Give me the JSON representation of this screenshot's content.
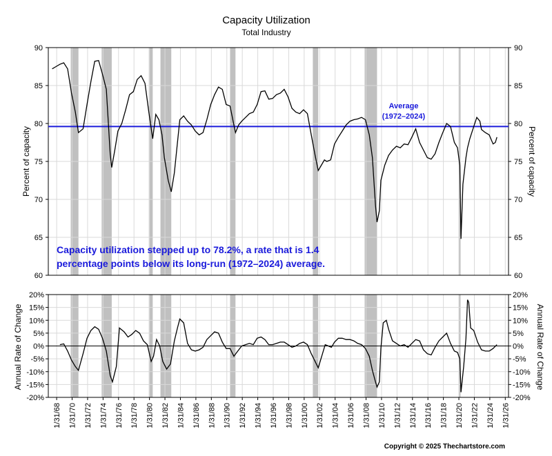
{
  "chart_data": [
    {
      "type": "line",
      "title": "Capacity Utilization",
      "subtitle": "Total Industry",
      "ylabel": "Percent of capacity",
      "ylim": [
        60,
        90
      ],
      "yticks": [
        60,
        65,
        70,
        75,
        80,
        85,
        90
      ],
      "average": {
        "value": 79.6,
        "label_line1": "Average",
        "label_line2": "(1972–2024)",
        "color": "#1a1adb"
      },
      "recessions": [
        [
          1969.9,
          1970.9
        ],
        [
          1973.9,
          1975.2
        ],
        [
          1980.0,
          1980.5
        ],
        [
          1981.5,
          1982.9
        ],
        [
          1990.5,
          1991.2
        ],
        [
          2001.2,
          2001.9
        ],
        [
          2007.9,
          2009.5
        ],
        [
          2020.1,
          2020.3
        ]
      ],
      "annotation_line1": "Capacity utilization stepped up to 78.2%, a rate that is 1.4",
      "annotation_line2": "percentage points below its long-run (1972–2024) average.",
      "series": [
        {
          "x": [
            1967.5,
            1968.0,
            1968.5,
            1969.0,
            1969.5,
            1970.0,
            1970.5,
            1970.9,
            1971.5,
            1972.0,
            1972.5,
            1973.0,
            1973.5,
            1974.0,
            1974.5,
            1975.0,
            1975.2,
            1975.6,
            1976.0,
            1976.5,
            1977.0,
            1977.5,
            1978.0,
            1978.5,
            1979.0,
            1979.5,
            1980.0,
            1980.5,
            1980.9,
            1981.3,
            1981.7,
            1982.0,
            1982.5,
            1982.9,
            1983.3,
            1983.7,
            1984.0,
            1984.5,
            1985.0,
            1985.5,
            1986.0,
            1986.5,
            1987.0,
            1987.5,
            1988.0,
            1988.5,
            1989.0,
            1989.5,
            1990.0,
            1990.5,
            1991.0,
            1991.2,
            1991.6,
            1992.0,
            1992.5,
            1993.0,
            1993.5,
            1994.0,
            1994.5,
            1995.0,
            1995.5,
            1996.0,
            1996.5,
            1997.0,
            1997.5,
            1998.0,
            1998.5,
            1999.0,
            1999.5,
            2000.0,
            2000.5,
            2001.0,
            2001.5,
            2001.9,
            2002.3,
            2002.7,
            2003.0,
            2003.5,
            2004.0,
            2004.5,
            2005.0,
            2005.5,
            2006.0,
            2006.5,
            2007.0,
            2007.5,
            2008.0,
            2008.5,
            2008.9,
            2009.3,
            2009.5,
            2009.8,
            2010.0,
            2010.5,
            2011.0,
            2011.5,
            2012.0,
            2012.5,
            2013.0,
            2013.5,
            2014.0,
            2014.5,
            2015.0,
            2015.5,
            2016.0,
            2016.5,
            2017.0,
            2017.5,
            2018.0,
            2018.5,
            2019.0,
            2019.5,
            2019.9,
            2020.2,
            2020.35,
            2020.6,
            2021.0,
            2021.2,
            2021.5,
            2022.0,
            2022.4,
            2022.8,
            2023.0,
            2023.5,
            2024.0,
            2024.5,
            2024.8,
            2025.0
          ],
          "y": [
            87.2,
            87.5,
            87.8,
            88.0,
            87.2,
            84.0,
            81.5,
            78.8,
            79.3,
            82.5,
            85.5,
            88.2,
            88.3,
            86.5,
            84.5,
            76.0,
            74.2,
            76.5,
            79.0,
            80.0,
            81.8,
            83.8,
            84.2,
            85.8,
            86.3,
            85.3,
            81.5,
            78.0,
            81.2,
            80.5,
            78.5,
            75.5,
            72.5,
            71.0,
            73.5,
            77.5,
            80.5,
            81.0,
            80.3,
            79.8,
            79.0,
            78.5,
            78.8,
            80.5,
            82.5,
            83.8,
            84.8,
            84.5,
            82.5,
            82.3,
            79.8,
            78.8,
            79.8,
            80.3,
            80.8,
            81.3,
            81.5,
            82.5,
            84.2,
            84.3,
            83.2,
            83.3,
            83.8,
            84.0,
            84.5,
            83.5,
            82.0,
            81.5,
            81.3,
            81.8,
            81.3,
            78.5,
            75.8,
            73.8,
            74.5,
            75.2,
            75.0,
            75.2,
            77.3,
            78.2,
            79.0,
            79.8,
            80.3,
            80.5,
            80.6,
            80.8,
            80.5,
            78.5,
            75.5,
            69.2,
            67.0,
            68.5,
            72.5,
            74.5,
            75.8,
            76.5,
            77.0,
            76.8,
            77.3,
            77.2,
            78.2,
            79.3,
            77.5,
            76.5,
            75.5,
            75.3,
            76.0,
            77.5,
            78.8,
            80.0,
            79.6,
            77.5,
            76.8,
            74.5,
            64.8,
            72.0,
            75.5,
            76.8,
            78.0,
            79.6,
            80.8,
            80.3,
            79.2,
            78.8,
            78.5,
            77.3,
            77.5,
            78.2
          ]
        }
      ]
    },
    {
      "type": "line",
      "ylabel": "Annual Rate of Change",
      "ylim": [
        -20,
        20
      ],
      "yticks": [
        -20,
        -15,
        -10,
        -5,
        0,
        5,
        10,
        15,
        20
      ],
      "ytick_labels": [
        "-20%",
        "-15%",
        "-10%",
        "-5%",
        "0%",
        "5%",
        "10%",
        "15%",
        "20%"
      ],
      "x_tick_labels": [
        "1/31/68",
        "1/31/70",
        "1/31/72",
        "1/31/74",
        "1/31/76",
        "1/31/78",
        "1/31/80",
        "1/31/82",
        "1/31/84",
        "1/31/86",
        "1/31/88",
        "1/31/90",
        "1/31/92",
        "1/31/94",
        "1/31/96",
        "1/31/98",
        "1/31/00",
        "1/31/02",
        "1/31/04",
        "1/31/06",
        "1/31/08",
        "1/31/10",
        "1/31/12",
        "1/31/14",
        "1/31/16",
        "1/31/18",
        "1/31/20",
        "1/31/22",
        "1/31/24",
        "1/31/26"
      ],
      "xlim": [
        1967.0,
        2026.5
      ],
      "series": [
        {
          "x": [
            1968.5,
            1969.0,
            1969.5,
            1970.0,
            1970.5,
            1970.9,
            1971.5,
            1972.0,
            1972.5,
            1973.0,
            1973.5,
            1974.0,
            1974.5,
            1975.0,
            1975.3,
            1975.8,
            1976.2,
            1976.8,
            1977.3,
            1977.8,
            1978.3,
            1978.8,
            1979.3,
            1979.8,
            1980.3,
            1980.6,
            1981.0,
            1981.4,
            1981.8,
            1982.3,
            1982.8,
            1983.3,
            1983.7,
            1984.0,
            1984.5,
            1985.0,
            1985.5,
            1986.0,
            1986.5,
            1987.0,
            1987.5,
            1988.0,
            1988.5,
            1989.0,
            1989.5,
            1990.0,
            1990.5,
            1991.0,
            1991.5,
            1992.0,
            1992.5,
            1993.0,
            1993.5,
            1994.0,
            1994.5,
            1995.0,
            1995.5,
            1996.0,
            1996.5,
            1997.0,
            1997.5,
            1998.0,
            1998.5,
            1999.0,
            1999.5,
            2000.0,
            2000.5,
            2001.0,
            2001.5,
            2001.9,
            2002.3,
            2002.8,
            2003.2,
            2003.6,
            2004.0,
            2004.5,
            2005.0,
            2005.5,
            2006.0,
            2006.5,
            2007.0,
            2007.5,
            2008.0,
            2008.5,
            2008.9,
            2009.3,
            2009.5,
            2009.8,
            2010.0,
            2010.3,
            2010.7,
            2011.0,
            2011.5,
            2012.0,
            2012.5,
            2013.0,
            2013.5,
            2014.0,
            2014.5,
            2015.0,
            2015.5,
            2016.0,
            2016.5,
            2017.0,
            2017.5,
            2018.0,
            2018.5,
            2019.0,
            2019.5,
            2019.9,
            2020.2,
            2020.35,
            2020.7,
            2021.0,
            2021.2,
            2021.35,
            2021.6,
            2022.0,
            2022.5,
            2023.0,
            2023.5,
            2024.0,
            2024.5,
            2025.0
          ],
          "y": [
            0.5,
            0.8,
            -2.0,
            -5.5,
            -8.0,
            -9.5,
            -3.0,
            3.0,
            6.0,
            7.5,
            6.5,
            3.0,
            -2.0,
            -11.5,
            -14.0,
            -8.0,
            7.0,
            5.5,
            3.5,
            4.5,
            6.0,
            5.0,
            2.0,
            0.5,
            -6.0,
            -4.0,
            2.5,
            0.0,
            -6.0,
            -9.0,
            -7.0,
            2.0,
            7.0,
            10.5,
            9.0,
            1.0,
            -1.5,
            -2.0,
            -1.5,
            -0.5,
            2.5,
            4.0,
            5.5,
            5.0,
            1.5,
            -1.0,
            -1.0,
            -4.0,
            -2.0,
            0.0,
            0.5,
            1.0,
            0.5,
            3.0,
            3.5,
            2.5,
            0.5,
            0.5,
            1.0,
            1.5,
            1.5,
            0.5,
            -0.5,
            0.0,
            1.0,
            1.5,
            0.5,
            -3.0,
            -6.0,
            -8.5,
            -4.5,
            0.5,
            0.0,
            -0.5,
            1.5,
            3.0,
            3.0,
            2.5,
            2.5,
            2.0,
            1.0,
            0.5,
            -1.0,
            -4.0,
            -9.5,
            -14.0,
            -16.0,
            -14.0,
            -1.0,
            9.0,
            10.0,
            6.5,
            2.0,
            1.0,
            0.0,
            0.5,
            -0.5,
            1.0,
            2.5,
            2.0,
            -1.5,
            -3.0,
            -3.5,
            -0.5,
            2.0,
            3.5,
            5.0,
            1.0,
            -2.0,
            -2.5,
            -5.0,
            -18.0,
            -8.0,
            3.0,
            18.0,
            17.0,
            7.0,
            6.0,
            1.5,
            -1.5,
            -2.0,
            -2.0,
            -1.0,
            0.5
          ]
        }
      ]
    }
  ],
  "footer": {
    "copyright": "Copyright © 2025 Thechartstore.com"
  }
}
